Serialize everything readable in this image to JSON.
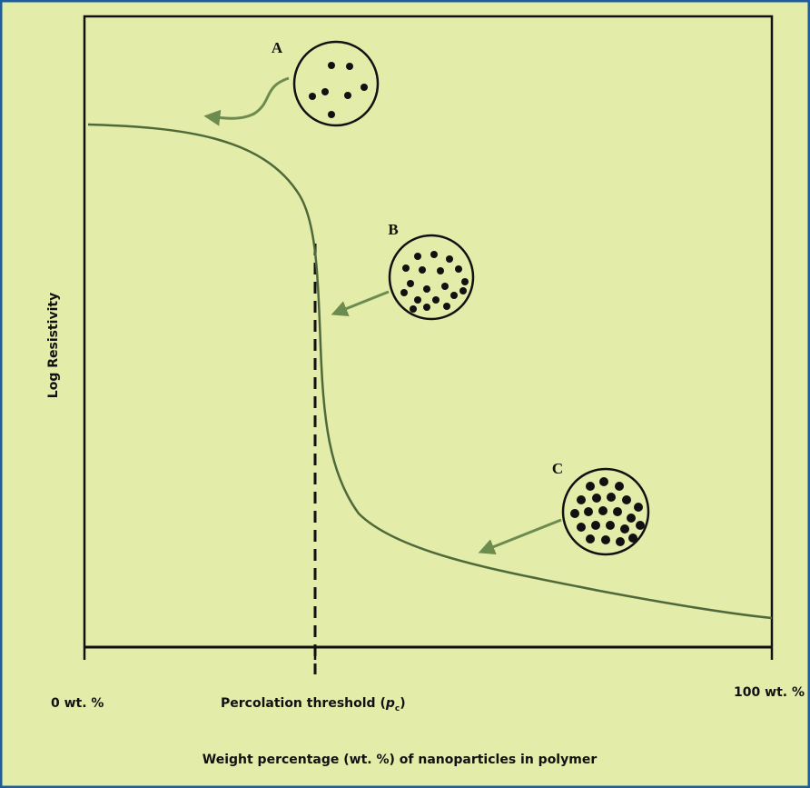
{
  "y_axis_label": "Log Resistivity",
  "x_axis_label": "Weight percentage (wt. %) of nanoparticles in polymer",
  "x_start_label": "0 wt. %",
  "x_end_label": "100 wt. %",
  "threshold_label": {
    "text": "Percolation threshold (",
    "symbol": "p",
    "subscript": "c",
    "closing": ")"
  },
  "insets": [
    {
      "label": "A"
    },
    {
      "label": "B"
    },
    {
      "label": "C"
    }
  ]
}
